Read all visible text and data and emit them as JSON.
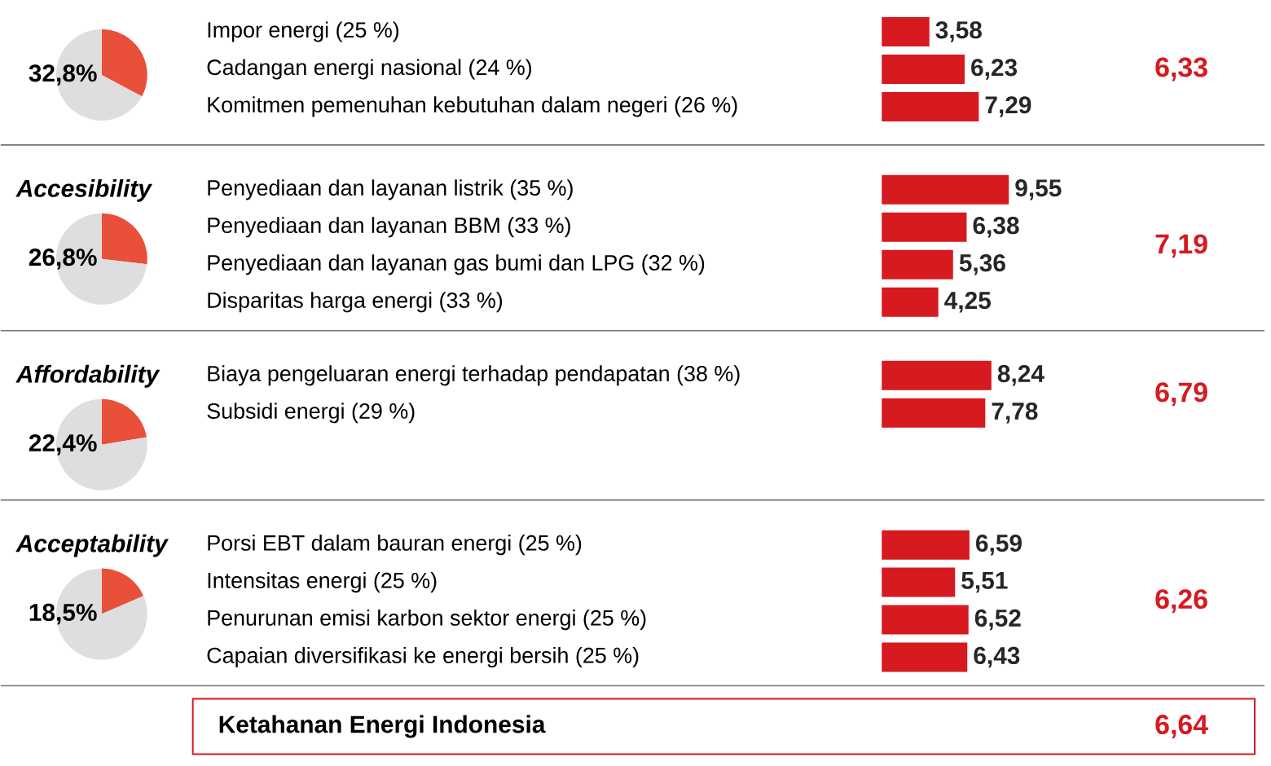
{
  "chart_data": [
    {
      "type": "pie",
      "categories": [
        null,
        null
      ],
      "values": [
        32.8,
        67.2
      ],
      "colors": [
        "#e8503a",
        "#dedede"
      ],
      "annotations": [
        "32,8%"
      ]
    },
    {
      "type": "bar",
      "orientation": "horizontal",
      "categories": [
        "Impor energi (25 %)",
        "Cadangan energi nasional (24 %)",
        "Komitmen pemenuhan kebutuhan dalam negeri (26 %)"
      ],
      "values": [
        3.58,
        6.23,
        7.29
      ],
      "value_labels": [
        "3,58",
        "6,23",
        "7,29"
      ],
      "color": "#d71920",
      "tick_labels": false,
      "annotations": [
        "6,33"
      ]
    },
    {
      "type": "pie",
      "title": "Accesibility",
      "categories": [
        null,
        null
      ],
      "values": [
        26.8,
        73.2
      ],
      "colors": [
        "#e8503a",
        "#dedede"
      ],
      "annotations": [
        "26,8%"
      ]
    },
    {
      "type": "bar",
      "orientation": "horizontal",
      "categories": [
        "Penyediaan dan layanan listrik (35 %)",
        "Penyediaan dan layanan BBM (33 %)",
        "Penyediaan dan layanan gas bumi dan LPG (32 %)",
        "Disparitas harga energi (33 %)"
      ],
      "values": [
        9.55,
        6.38,
        5.36,
        4.25
      ],
      "value_labels": [
        "9,55",
        "6,38",
        "5,36",
        "4,25"
      ],
      "color": "#d71920",
      "tick_labels": false,
      "annotations": [
        "7,19"
      ]
    },
    {
      "type": "pie",
      "title": "Affordability",
      "categories": [
        null,
        null
      ],
      "values": [
        22.4,
        77.6
      ],
      "colors": [
        "#e8503a",
        "#dedede"
      ],
      "annotations": [
        "22,4%"
      ]
    },
    {
      "type": "bar",
      "orientation": "horizontal",
      "categories": [
        "Biaya pengeluaran energi terhadap pendapatan (38 %)",
        "Subsidi energi (29 %)"
      ],
      "values": [
        8.24,
        7.78
      ],
      "value_labels": [
        "8,24",
        "7,78"
      ],
      "color": "#d71920",
      "tick_labels": false,
      "annotations": [
        "6,79"
      ]
    },
    {
      "type": "pie",
      "title": "Acceptability",
      "categories": [
        null,
        null
      ],
      "values": [
        18.5,
        81.5
      ],
      "colors": [
        "#e8503a",
        "#dedede"
      ],
      "annotations": [
        "18,5%"
      ]
    },
    {
      "type": "bar",
      "orientation": "horizontal",
      "categories": [
        "Porsi EBT dalam bauran energi (25 %)",
        "Intensitas energi (25 %)",
        "Penurunan emisi karbon sektor energi (25 %)",
        "Capaian diversifikasi ke energi bersih (25 %)"
      ],
      "values": [
        6.59,
        5.51,
        6.52,
        6.43
      ],
      "value_labels": [
        "6,59",
        "5,51",
        "6,52",
        "6,43"
      ],
      "color": "#d71920",
      "tick_labels": false,
      "annotations": [
        "6,26"
      ]
    },
    {
      "type": "other",
      "title": "Ketahanan Energi Indonesia",
      "annotations": [
        "6,64"
      ]
    }
  ]
}
